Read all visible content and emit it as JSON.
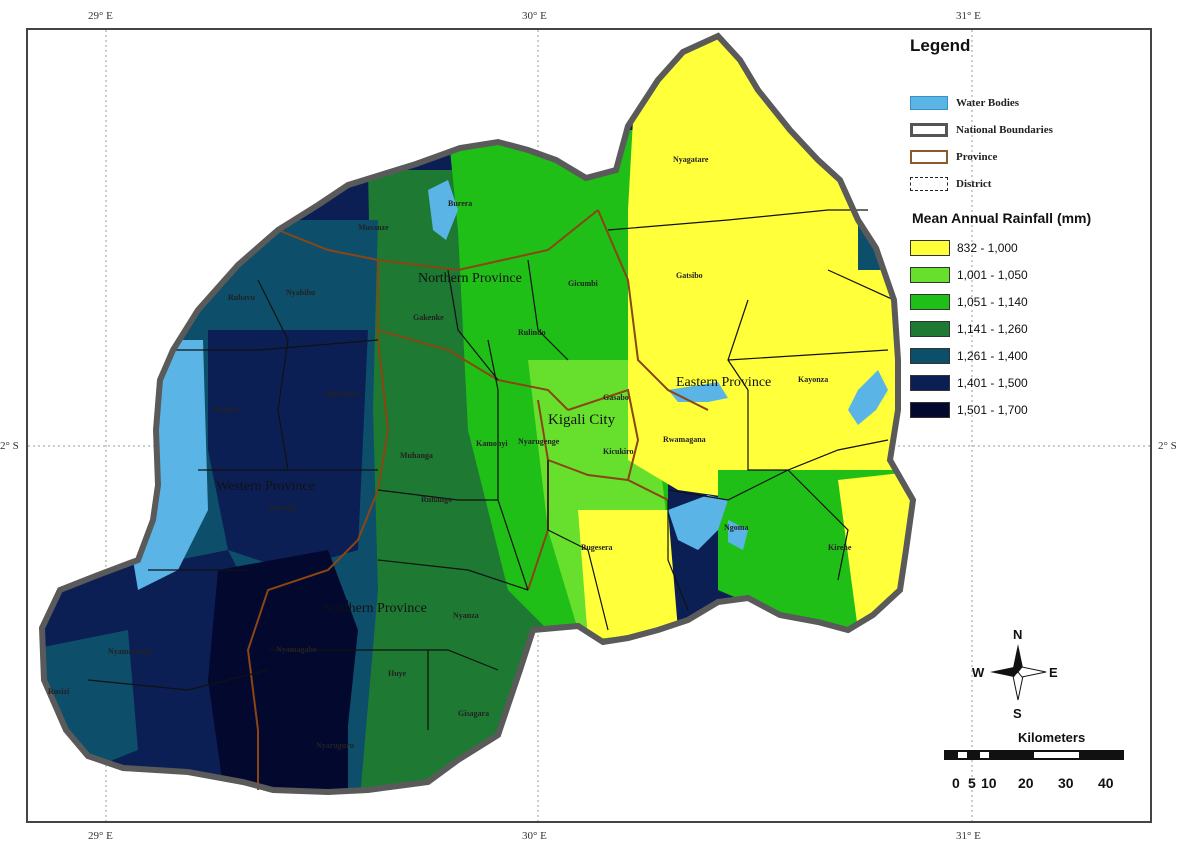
{
  "coordinates": {
    "top": [
      "29° E",
      "30° E",
      "31° E"
    ],
    "bottom": [
      "29° E",
      "30° E",
      "31° E"
    ],
    "left": "2° S",
    "right": "2° S"
  },
  "legend": {
    "title": "Legend",
    "items": [
      {
        "label": "Water Bodies",
        "color": "#5ab4e6"
      },
      {
        "label": "National Boundaries",
        "color": "#555555"
      },
      {
        "label": "Province",
        "color": "#8b5a2b"
      },
      {
        "label": "District",
        "color": "#222222"
      }
    ],
    "rainfall_title": "Mean Annual Rainfall (mm)",
    "rainfall_classes": [
      {
        "label": "832 - 1,000",
        "color": "#ffff3a"
      },
      {
        "label": "1,001 - 1,050",
        "color": "#66e02c"
      },
      {
        "label": "1,051 - 1,140",
        "color": "#1fbf18"
      },
      {
        "label": "1,141 - 1,260",
        "color": "#1e7a32"
      },
      {
        "label": "1,261 - 1,400",
        "color": "#0d4f6a"
      },
      {
        "label": "1,401 - 1,500",
        "color": "#0b1f55"
      },
      {
        "label": "1,501 - 1,700",
        "color": "#03082e"
      }
    ]
  },
  "compass": {
    "n": "N",
    "s": "S",
    "e": "E",
    "w": "W"
  },
  "scale_bar": {
    "title": "Kilometers",
    "ticks": [
      "0",
      "5",
      "10",
      "20",
      "30",
      "40"
    ]
  },
  "province_labels": {
    "northern": "Northern Province",
    "eastern": "Eastern Province",
    "western": "Western Province",
    "southern": "Southern Province",
    "kigali": "Kigali City"
  },
  "district_labels": {
    "nyagatare": "Nyagatare",
    "gatsibo": "Gatsibo",
    "kayonza": "Kayonza",
    "gicumbi": "Gicumbi",
    "gakenke": "Gakenke",
    "rulindo": "Rulindo",
    "gasabo": "Gasabo",
    "nyarugenge": "Nyarugenge",
    "kicukiro": "Kicukiro",
    "rwamagana": "Rwamagana",
    "kamonyi": "Kamonyi",
    "muhanga": "Muhanga",
    "ngororero": "Ngororero",
    "nyabihu": "Nyabihu",
    "rubavu": "Rubavu",
    "rutsiro": "Rutsiro",
    "karongi": "Karongi",
    "ruhango": "Ruhango",
    "bugesera": "Bugesera",
    "ngoma": "Ngoma",
    "kirehe": "Kirehe",
    "nyanza": "Nyanza",
    "nyamasheke": "Nyamasheke",
    "nyamagabe": "Nyamagabe",
    "huye": "Huye",
    "gisagara": "Gisagara",
    "rusizi": "Rusizi",
    "nyaruguru": "Nyaruguru",
    "burera": "Burera",
    "musanze": "Musanze"
  }
}
